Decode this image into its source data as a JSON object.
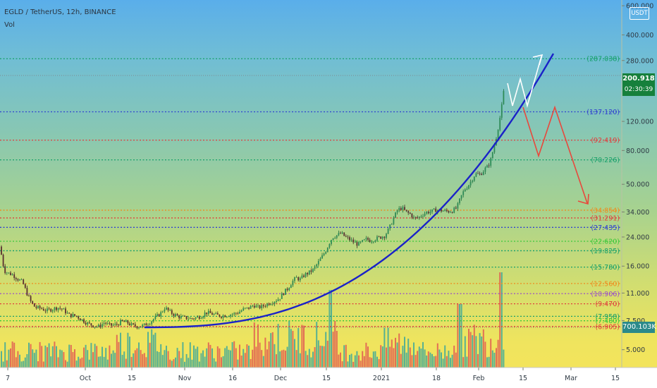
{
  "header": {
    "title": "EGLD / TetherUS, 12h, BINANCE",
    "vol_label": "Vol"
  },
  "currency_button": "USDT",
  "current_price": {
    "value": "200.918",
    "countdown": "02:30:39",
    "color": "#16803c"
  },
  "volume_label": {
    "value": "700.103K",
    "color": "#2b8a8a"
  },
  "chart_data": {
    "type": "candlestick",
    "title": "EGLD / TetherUS, 12h, BINANCE",
    "y_scale": "log",
    "ylim": [
      3.9,
      650
    ],
    "y_ticks": [
      {
        "value": 600,
        "label": "600.000"
      },
      {
        "value": 400,
        "label": "400.000"
      },
      {
        "value": 280,
        "label": "280.000"
      },
      {
        "value": 120,
        "label": "120.000"
      },
      {
        "value": 80,
        "label": "80.000"
      },
      {
        "value": 50,
        "label": "50.000"
      },
      {
        "value": 34,
        "label": "34.000"
      },
      {
        "value": 24,
        "label": "24.000"
      },
      {
        "value": 16,
        "label": "16.000"
      },
      {
        "value": 11,
        "label": "11.000"
      },
      {
        "value": 7.5,
        "label": "7.500"
      },
      {
        "value": 5,
        "label": "5.000"
      }
    ],
    "x_ticks": [
      "7",
      "Oct",
      "15",
      "Nov",
      "16",
      "Dec",
      "15",
      "2021",
      "18",
      "Feb",
      "15",
      "Mar",
      "15"
    ],
    "levels": [
      {
        "value": 287.038,
        "label": "(287.038)",
        "color": "#16a06a"
      },
      {
        "value": 137.12,
        "label": "(137.120)",
        "color": "#2f40d0"
      },
      {
        "value": 92.419,
        "label": "(92.419)",
        "color": "#e03c3c"
      },
      {
        "value": 70.226,
        "label": "(70.226)",
        "color": "#16a06a"
      },
      {
        "value": 34.854,
        "label": "(34.854)",
        "color": "#f08a1c"
      },
      {
        "value": 31.291,
        "label": "(31.291)",
        "color": "#e03c3c"
      },
      {
        "value": 27.435,
        "label": "(27.435)",
        "color": "#2f40d0"
      },
      {
        "value": 22.62,
        "label": "(22.620)",
        "color": "#38c838"
      },
      {
        "value": 19.825,
        "label": "(19.825)",
        "color": "#16a06a"
      },
      {
        "value": 15.78,
        "label": "(15.780)",
        "color": "#16a06a"
      },
      {
        "value": 12.56,
        "label": "(12.560)",
        "color": "#f08a1c"
      },
      {
        "value": 10.906,
        "label": "(10.906)",
        "color": "#9a4ec8"
      },
      {
        "value": 9.47,
        "label": "(9.470)",
        "color": "#e03c3c"
      },
      {
        "value": 7.958,
        "label": "(7.958)",
        "color": "#16a06a"
      },
      {
        "value": 7.48,
        "label": "(7.480)",
        "color": "#38c838"
      },
      {
        "value": 6.905,
        "label": "(6.905)",
        "color": "#e03c3c"
      }
    ],
    "colors": {
      "up": "#26a69a",
      "down": "#e0514a",
      "curve": "#1a22c8",
      "bull_path": "#ffffff",
      "bear_path": "#e8483c"
    }
  }
}
